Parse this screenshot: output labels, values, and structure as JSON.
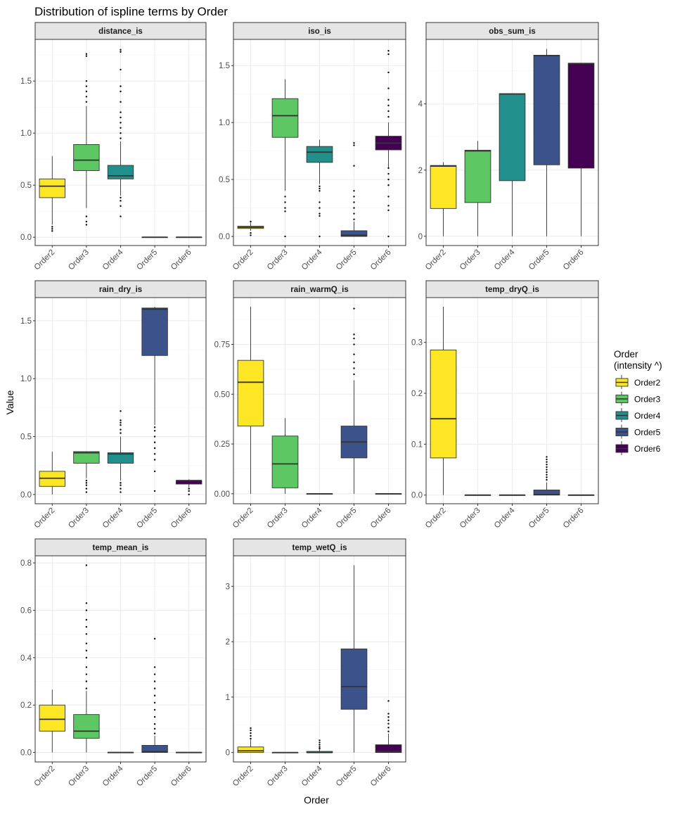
{
  "chart_data": {
    "type": "boxplot",
    "title": "Distribution of ispline terms by Order",
    "xlabel": "Order",
    "ylabel": "Value",
    "categories": [
      "Order2",
      "Order3",
      "Order4",
      "Order5",
      "Order6"
    ],
    "legend": {
      "title_line1": "Order",
      "title_line2": "(intensity ^)",
      "placement": "right",
      "entries": [
        "Order2",
        "Order3",
        "Order4",
        "Order5",
        "Order6"
      ]
    },
    "colors": {
      "Order2": "#FDE725",
      "Order3": "#5DC863",
      "Order4": "#21908C",
      "Order5": "#3B528B",
      "Order6": "#440154"
    },
    "grid": true,
    "facets": [
      {
        "name": "distance_is",
        "ylim": [
          -0.08,
          1.9
        ],
        "yticks": [
          0.0,
          0.5,
          1.0,
          1.5
        ],
        "ytick_labels": [
          "0.0",
          "0.5",
          "1.0",
          "1.5"
        ],
        "boxes": [
          {
            "category": "Order2",
            "min": 0.12,
            "q1": 0.38,
            "median": 0.49,
            "q3": 0.56,
            "max": 0.78,
            "outliers": [
              0.06,
              0.08,
              0.1
            ]
          },
          {
            "category": "Order3",
            "min": 0.28,
            "q1": 0.64,
            "median": 0.74,
            "q3": 0.89,
            "max": 1.26,
            "outliers": [
              0.12,
              0.15,
              0.2,
              1.3,
              1.35,
              1.4,
              1.45,
              1.5,
              1.74,
              1.76
            ]
          },
          {
            "category": "Order4",
            "min": 0.4,
            "q1": 0.56,
            "median": 0.59,
            "q3": 0.69,
            "max": 0.92,
            "outliers": [
              0.2,
              0.3,
              0.35,
              0.38,
              0.95,
              1.0,
              1.05,
              1.1,
              1.15,
              1.2,
              1.3,
              1.4,
              1.45,
              1.61,
              1.78,
              1.8
            ]
          },
          {
            "category": "Order5",
            "min": 0.0,
            "q1": 0.0,
            "median": 0.0,
            "q3": 0.0,
            "max": 0.0,
            "outliers": []
          },
          {
            "category": "Order6",
            "min": 0.0,
            "q1": 0.0,
            "median": 0.0,
            "q3": 0.0,
            "max": 0.0,
            "outliers": []
          }
        ]
      },
      {
        "name": "iso_is",
        "ylim": [
          -0.08,
          1.73
        ],
        "yticks": [
          0.0,
          0.5,
          1.0,
          1.5
        ],
        "ytick_labels": [
          "0.0",
          "0.5",
          "1.0",
          "1.5"
        ],
        "boxes": [
          {
            "category": "Order2",
            "min": 0.05,
            "q1": 0.07,
            "median": 0.08,
            "q3": 0.09,
            "max": 0.12,
            "outliers": [
              0.01,
              0.03,
              0.13
            ]
          },
          {
            "category": "Order3",
            "min": 0.4,
            "q1": 0.87,
            "median": 1.06,
            "q3": 1.21,
            "max": 1.38,
            "outliers": [
              0.0,
              0.22,
              0.25,
              0.3,
              0.35
            ]
          },
          {
            "category": "Order4",
            "min": 0.46,
            "q1": 0.65,
            "median": 0.74,
            "q3": 0.79,
            "max": 0.85,
            "outliers": [
              0.0,
              0.18,
              0.2,
              0.25,
              0.3,
              0.4,
              0.42,
              0.44
            ]
          },
          {
            "category": "Order5",
            "min": 0.0,
            "q1": 0.0,
            "median": 0.01,
            "q3": 0.05,
            "max": 0.13,
            "outliers": [
              0.15,
              0.2,
              0.25,
              0.3,
              0.35,
              0.4,
              0.62,
              0.8,
              0.82
            ]
          },
          {
            "category": "Order6",
            "min": 0.6,
            "q1": 0.76,
            "median": 0.82,
            "q3": 0.88,
            "max": 1.0,
            "outliers": [
              0.0,
              0.23,
              0.27,
              0.35,
              0.45,
              0.5,
              0.55,
              0.6,
              1.05,
              1.1,
              1.15,
              1.2,
              1.3,
              1.44,
              1.6,
              1.63
            ]
          }
        ]
      },
      {
        "name": "obs_sum_is",
        "ylim": [
          -0.28,
          5.95
        ],
        "yticks": [
          0,
          2,
          4
        ],
        "ytick_labels": [
          "0",
          "2",
          "4"
        ],
        "boxes": [
          {
            "category": "Order2",
            "min": 0.0,
            "q1": 0.84,
            "median": 2.12,
            "q3": 2.14,
            "max": 2.24,
            "outliers": []
          },
          {
            "category": "Order3",
            "min": 0.0,
            "q1": 1.02,
            "median": 2.58,
            "q3": 2.6,
            "max": 2.88,
            "outliers": []
          },
          {
            "category": "Order4",
            "min": 0.0,
            "q1": 1.68,
            "median": 4.3,
            "q3": 4.31,
            "max": 4.31,
            "outliers": []
          },
          {
            "category": "Order5",
            "min": 0.0,
            "q1": 2.16,
            "median": 5.46,
            "q3": 5.47,
            "max": 5.66,
            "outliers": []
          },
          {
            "category": "Order6",
            "min": 0.0,
            "q1": 2.06,
            "median": 5.22,
            "q3": 5.23,
            "max": 5.23,
            "outliers": []
          }
        ]
      },
      {
        "name": "rain_dry_is",
        "ylim": [
          -0.08,
          1.7
        ],
        "yticks": [
          0.0,
          0.5,
          1.0,
          1.5
        ],
        "ytick_labels": [
          "0.0",
          "0.5",
          "1.0",
          "1.5"
        ],
        "boxes": [
          {
            "category": "Order2",
            "min": 0.0,
            "q1": 0.07,
            "median": 0.14,
            "q3": 0.2,
            "max": 0.37,
            "outliers": []
          },
          {
            "category": "Order3",
            "min": 0.14,
            "q1": 0.27,
            "median": 0.36,
            "q3": 0.37,
            "max": 0.37,
            "outliers": [
              0.02,
              0.05,
              0.08,
              0.1,
              0.12
            ]
          },
          {
            "category": "Order4",
            "min": 0.12,
            "q1": 0.27,
            "median": 0.35,
            "q3": 0.36,
            "max": 0.5,
            "outliers": [
              0.02,
              0.05,
              0.08,
              0.1,
              0.53,
              0.56,
              0.6,
              0.62,
              0.64,
              0.72
            ]
          },
          {
            "category": "Order5",
            "min": 0.6,
            "q1": 1.2,
            "median": 1.6,
            "q3": 1.61,
            "max": 1.62,
            "outliers": [
              0.03,
              0.2,
              0.3,
              0.35,
              0.4,
              0.45,
              0.5,
              0.55,
              0.58
            ]
          },
          {
            "category": "Order6",
            "min": 0.06,
            "q1": 0.09,
            "median": 0.12,
            "q3": 0.12,
            "max": 0.13,
            "outliers": [
              0.0,
              0.03,
              0.05
            ]
          }
        ]
      },
      {
        "name": "rain_warmQ_is",
        "ylim": [
          -0.05,
          0.985
        ],
        "yticks": [
          0.0,
          0.25,
          0.5,
          0.75
        ],
        "ytick_labels": [
          "0.00",
          "0.25",
          "0.50",
          "0.75"
        ],
        "boxes": [
          {
            "category": "Order2",
            "min": 0.0,
            "q1": 0.34,
            "median": 0.56,
            "q3": 0.67,
            "max": 0.94,
            "outliers": []
          },
          {
            "category": "Order3",
            "min": 0.0,
            "q1": 0.03,
            "median": 0.15,
            "q3": 0.29,
            "max": 0.38,
            "outliers": []
          },
          {
            "category": "Order4",
            "min": 0.0,
            "q1": 0.0,
            "median": 0.0,
            "q3": 0.0,
            "max": 0.0,
            "outliers": []
          },
          {
            "category": "Order5",
            "min": 0.0,
            "q1": 0.18,
            "median": 0.26,
            "q3": 0.34,
            "max": 0.57,
            "outliers": [
              0.6,
              0.63,
              0.66,
              0.7,
              0.75,
              0.78,
              0.8,
              0.93
            ]
          },
          {
            "category": "Order6",
            "min": 0.0,
            "q1": 0.0,
            "median": 0.0,
            "q3": 0.0,
            "max": 0.0,
            "outliers": []
          }
        ]
      },
      {
        "name": "temp_dryQ_is",
        "ylim": [
          -0.017,
          0.388
        ],
        "yticks": [
          0.0,
          0.1,
          0.2,
          0.3
        ],
        "ytick_labels": [
          "0.0",
          "0.1",
          "0.2",
          "0.3"
        ],
        "boxes": [
          {
            "category": "Order2",
            "min": 0.0,
            "q1": 0.073,
            "median": 0.15,
            "q3": 0.285,
            "max": 0.37,
            "outliers": []
          },
          {
            "category": "Order3",
            "min": 0.0,
            "q1": 0.0,
            "median": 0.0,
            "q3": 0.0,
            "max": 0.0,
            "outliers": []
          },
          {
            "category": "Order4",
            "min": 0.0,
            "q1": 0.0,
            "median": 0.0,
            "q3": 0.0,
            "max": 0.0,
            "outliers": []
          },
          {
            "category": "Order5",
            "min": 0.0,
            "q1": 0.0,
            "median": 0.001,
            "q3": 0.01,
            "max": 0.025,
            "outliers": [
              0.03,
              0.035,
              0.04,
              0.045,
              0.05,
              0.055,
              0.06,
              0.065,
              0.07,
              0.075
            ]
          },
          {
            "category": "Order6",
            "min": 0.0,
            "q1": 0.0,
            "median": 0.0,
            "q3": 0.0,
            "max": 0.0,
            "outliers": []
          }
        ]
      },
      {
        "name": "temp_mean_is",
        "ylim": [
          -0.04,
          0.83
        ],
        "yticks": [
          0.0,
          0.2,
          0.4,
          0.6,
          0.8
        ],
        "ytick_labels": [
          "0.0",
          "0.2",
          "0.4",
          "0.6",
          "0.8"
        ],
        "boxes": [
          {
            "category": "Order2",
            "min": 0.0,
            "q1": 0.09,
            "median": 0.14,
            "q3": 0.2,
            "max": 0.265,
            "outliers": []
          },
          {
            "category": "Order3",
            "min": 0.0,
            "q1": 0.06,
            "median": 0.09,
            "q3": 0.16,
            "max": 0.26,
            "outliers": [
              0.27,
              0.3,
              0.33,
              0.36,
              0.4,
              0.43,
              0.46,
              0.5,
              0.53,
              0.56,
              0.6,
              0.63,
              0.79
            ]
          },
          {
            "category": "Order4",
            "min": 0.0,
            "q1": 0.0,
            "median": 0.0,
            "q3": 0.0,
            "max": 0.0,
            "outliers": []
          },
          {
            "category": "Order5",
            "min": 0.0,
            "q1": 0.0,
            "median": 0.003,
            "q3": 0.03,
            "max": 0.07,
            "outliers": [
              0.08,
              0.1,
              0.12,
              0.15,
              0.18,
              0.21,
              0.24,
              0.27,
              0.3,
              0.33,
              0.36,
              0.48
            ]
          },
          {
            "category": "Order6",
            "min": 0.0,
            "q1": 0.0,
            "median": 0.0,
            "q3": 0.0,
            "max": 0.0,
            "outliers": []
          }
        ]
      },
      {
        "name": "temp_wetQ_is",
        "ylim": [
          -0.17,
          3.55
        ],
        "yticks": [
          0,
          1,
          2,
          3
        ],
        "ytick_labels": [
          "0",
          "1",
          "2",
          "3"
        ],
        "boxes": [
          {
            "category": "Order2",
            "min": 0.0,
            "q1": 0.0,
            "median": 0.03,
            "q3": 0.1,
            "max": 0.23,
            "outliers": [
              0.25,
              0.3,
              0.35,
              0.4,
              0.44
            ]
          },
          {
            "category": "Order3",
            "min": 0.0,
            "q1": 0.0,
            "median": 0.0,
            "q3": 0.0,
            "max": 0.0,
            "outliers": []
          },
          {
            "category": "Order4",
            "min": 0.0,
            "q1": 0.0,
            "median": 0.0,
            "q3": 0.02,
            "max": 0.05,
            "outliers": [
              0.07,
              0.1,
              0.14,
              0.18,
              0.22
            ]
          },
          {
            "category": "Order5",
            "min": 0.0,
            "q1": 0.78,
            "median": 1.19,
            "q3": 1.87,
            "max": 3.38,
            "outliers": []
          },
          {
            "category": "Order6",
            "min": 0.0,
            "q1": 0.0,
            "median": 0.02,
            "q3": 0.14,
            "max": 0.34,
            "outliers": [
              0.38,
              0.45,
              0.52,
              0.58,
              0.64,
              0.7,
              0.93
            ]
          }
        ]
      }
    ]
  }
}
